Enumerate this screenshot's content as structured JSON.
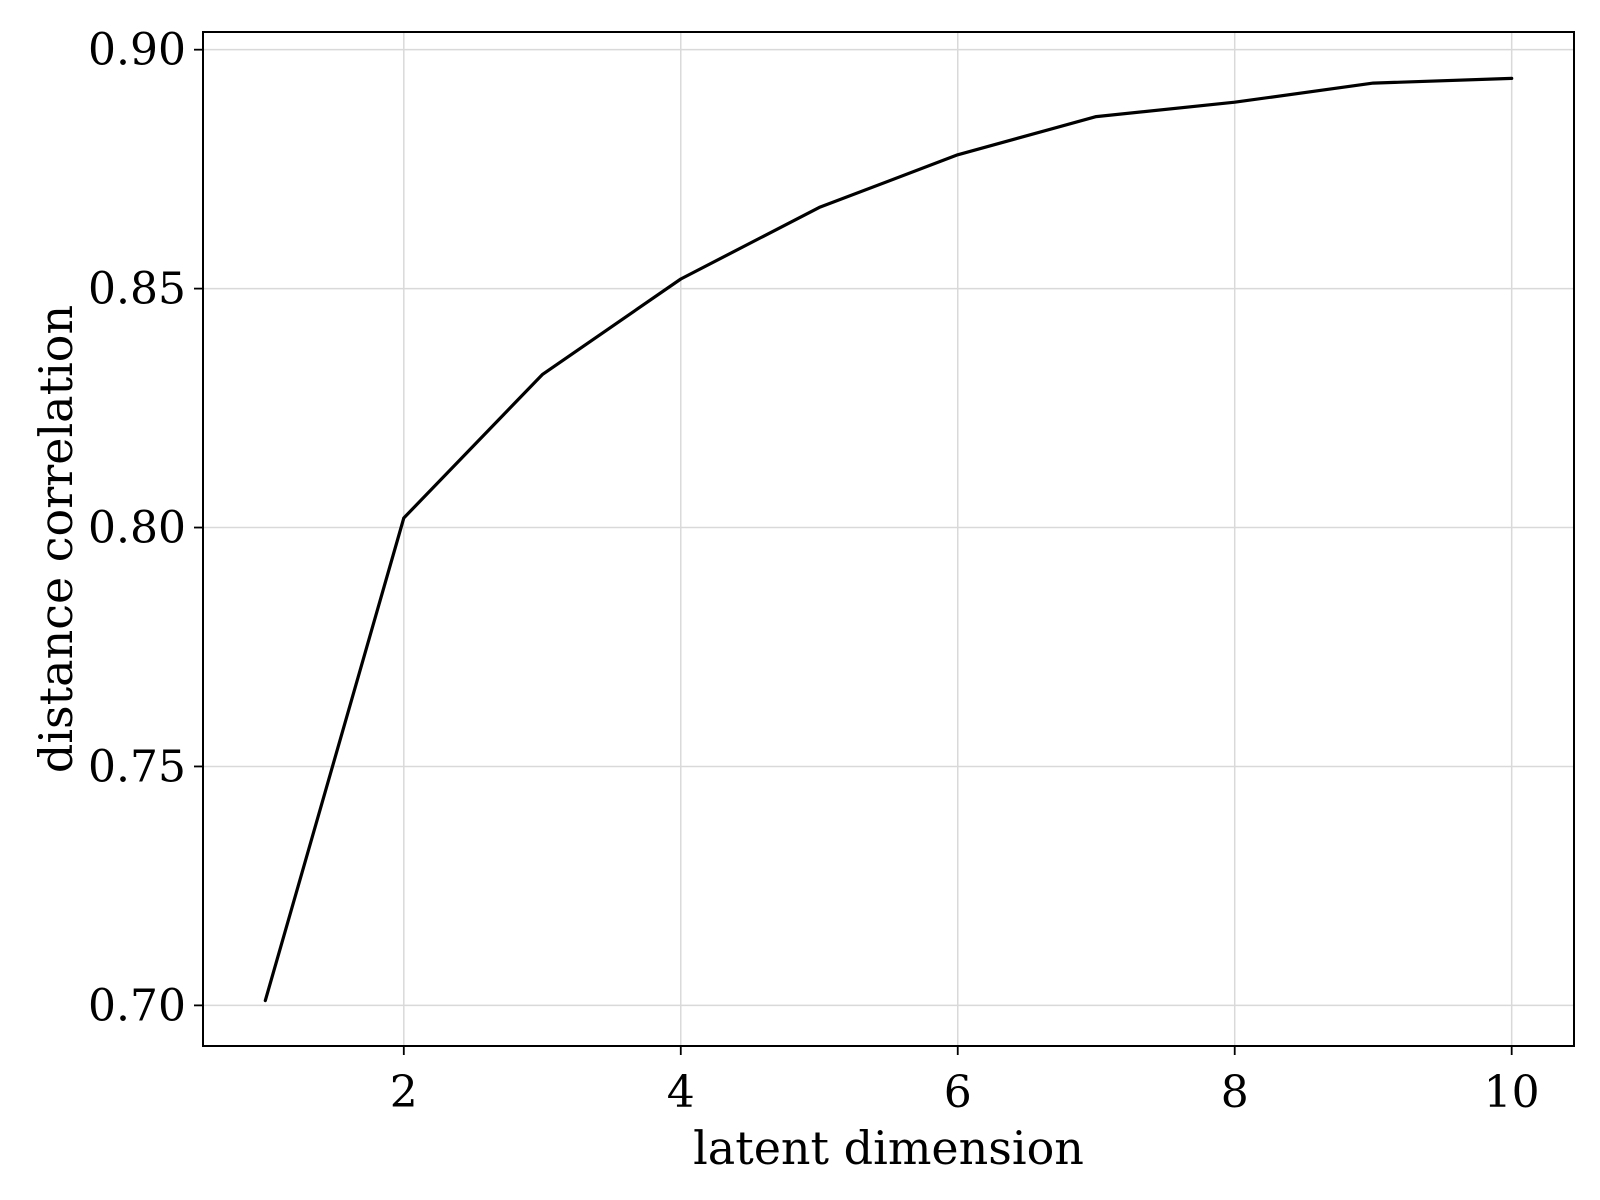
{
  "chart_data": {
    "type": "line",
    "title": "",
    "xlabel": "latent dimension",
    "ylabel": "distance correlation",
    "xlim": [
      0.55,
      10.45
    ],
    "ylim": [
      0.6915,
      0.9037
    ],
    "grid": true,
    "x_ticks": [
      2,
      4,
      6,
      8,
      10
    ],
    "x_tick_labels": [
      "2",
      "4",
      "6",
      "8",
      "10"
    ],
    "y_ticks": [
      0.7,
      0.75,
      0.8,
      0.85,
      0.9
    ],
    "y_tick_labels": [
      "0.70",
      "0.75",
      "0.80",
      "0.85",
      "0.90"
    ],
    "series": [
      {
        "color": "#000000",
        "x": [
          1,
          2,
          3,
          4,
          5,
          6,
          7,
          8,
          9,
          10
        ],
        "y": [
          0.701,
          0.802,
          0.832,
          0.852,
          0.867,
          0.878,
          0.886,
          0.889,
          0.893,
          0.894
        ]
      }
    ]
  }
}
